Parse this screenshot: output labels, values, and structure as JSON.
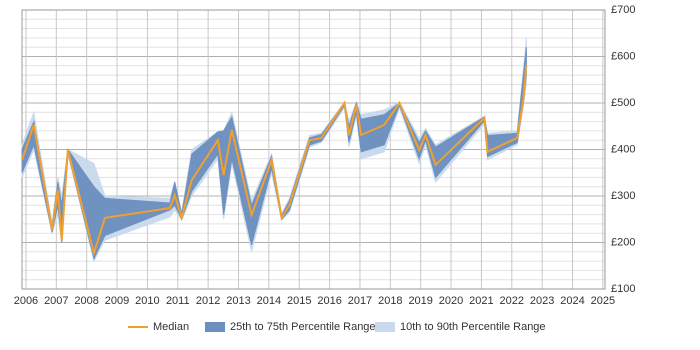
{
  "chart_data": {
    "type": "band-line",
    "x": [
      2005.87,
      2006.26,
      2006.86,
      2007.05,
      2007.18,
      2007.38,
      2008.24,
      2008.6,
      2010.74,
      2010.9,
      2011.13,
      2011.46,
      2012.32,
      2012.51,
      2012.78,
      2013.43,
      2014.09,
      2014.42,
      2014.68,
      2015.34,
      2015.73,
      2016.49,
      2016.64,
      2016.88,
      2017.04,
      2017.8,
      2018.3,
      2018.95,
      2019.16,
      2019.49,
      2021.1,
      2021.2,
      2022.18,
      2022.38,
      2022.48
    ],
    "series": [
      {
        "name": "Median",
        "color": "#f0a030",
        "values": [
          377,
          453,
          227,
          313,
          205,
          399,
          177,
          253,
          274,
          302,
          253,
          334,
          420,
          345,
          442,
          259,
          377,
          253,
          281,
          420,
          425,
          500,
          431,
          496,
          431,
          453,
          500,
          399,
          431,
          367,
          468,
          395,
          425,
          506,
          582
        ]
      },
      {
        "name": "25th to 75th Percentile Range",
        "color": "#6b8fbf",
        "low": [
          350,
          410,
          222,
          280,
          200,
          395,
          165,
          215,
          270,
          280,
          250,
          310,
          390,
          260,
          380,
          195,
          360,
          250,
          270,
          410,
          418,
          495,
          415,
          480,
          395,
          410,
          495,
          380,
          420,
          340,
          462,
          385,
          415,
          500,
          560
        ],
        "high": [
          400,
          460,
          235,
          330,
          280,
          400,
          320,
          295,
          285,
          330,
          260,
          390,
          438,
          440,
          470,
          280,
          385,
          258,
          290,
          425,
          432,
          500,
          450,
          500,
          465,
          475,
          500,
          415,
          440,
          405,
          470,
          430,
          435,
          560,
          620
        ]
      },
      {
        "name": "10th to 90th Percentile Range",
        "color": "#c9daee",
        "low": [
          340,
          400,
          220,
          260,
          200,
          390,
          160,
          205,
          255,
          270,
          248,
          300,
          380,
          250,
          370,
          180,
          350,
          248,
          265,
          405,
          415,
          490,
          405,
          475,
          380,
          395,
          490,
          370,
          410,
          330,
          455,
          378,
          410,
          495,
          540
        ],
        "high": [
          410,
          480,
          240,
          340,
          300,
          400,
          370,
          300,
          295,
          330,
          265,
          400,
          438,
          440,
          480,
          290,
          390,
          262,
          295,
          430,
          435,
          502,
          460,
          502,
          475,
          485,
          502,
          425,
          445,
          410,
          472,
          435,
          440,
          570,
          640
        ]
      }
    ],
    "xlim": [
      2005.87,
      2025.07
    ],
    "xticks": [
      2006,
      2007,
      2008,
      2009,
      2010,
      2011,
      2012,
      2013,
      2014,
      2015,
      2016,
      2017,
      2018,
      2019,
      2020,
      2021,
      2022,
      2023,
      2024,
      2025
    ],
    "ylim": [
      100,
      700
    ],
    "yticks": [
      {
        "value": 100,
        "label": "£100"
      },
      {
        "value": 200,
        "label": "£200"
      },
      {
        "value": 300,
        "label": "£300"
      },
      {
        "value": 400,
        "label": "£400"
      },
      {
        "value": 500,
        "label": "£500"
      },
      {
        "value": 600,
        "label": "£600"
      },
      {
        "value": 700,
        "label": "£700"
      }
    ],
    "yminorticks": [
      120,
      140,
      160,
      180,
      220,
      240,
      260,
      280,
      320,
      340,
      360,
      380,
      420,
      440,
      460,
      480,
      520,
      540,
      560,
      580,
      620,
      640,
      660,
      680
    ],
    "grid": true,
    "legend": "bottom"
  }
}
